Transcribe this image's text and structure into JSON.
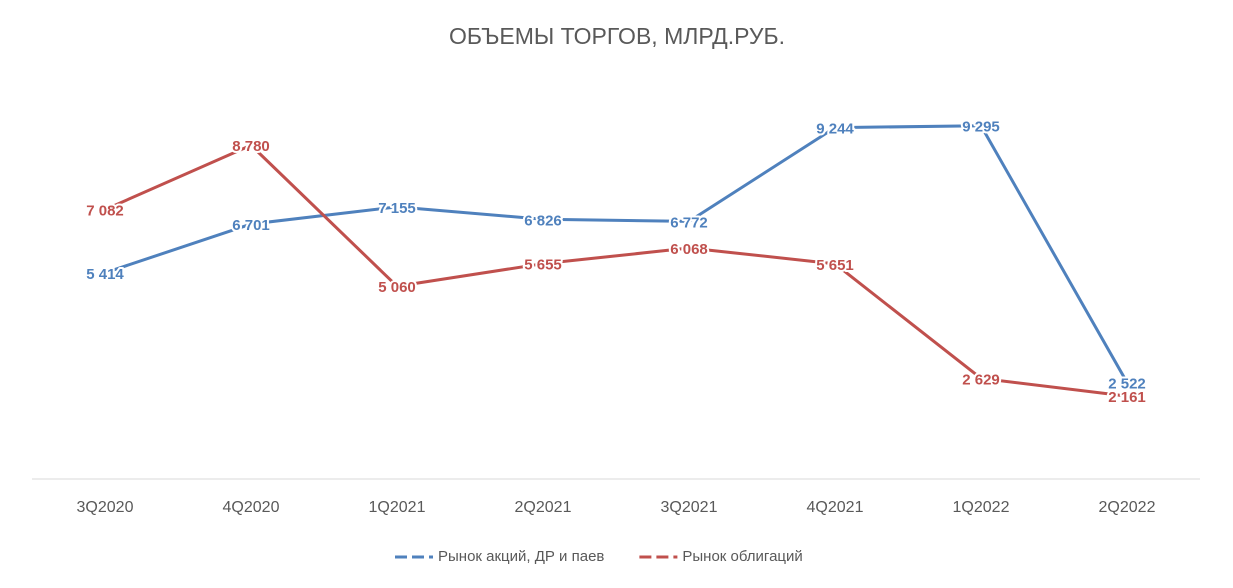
{
  "chart_data": {
    "type": "line",
    "title": "ОБЪЕМЫ ТОРГОВ, МЛРД.РУБ.",
    "categories": [
      "3Q2020",
      "4Q2020",
      "1Q2021",
      "2Q2021",
      "3Q2021",
      "4Q2021",
      "1Q2022",
      "2Q2022"
    ],
    "series": [
      {
        "name": "Рынок акций, ДР и паев",
        "color": "#4f81bd",
        "values": [
          5414,
          6701,
          7155,
          6826,
          6772,
          9244,
          9295,
          2522
        ],
        "value_labels": [
          "5 414",
          "6 701",
          "7 155",
          "6 826",
          "6 772",
          "9 244",
          "9 295",
          "2 522"
        ]
      },
      {
        "name": "Рынок облигаций",
        "color": "#c0504d",
        "values": [
          7082,
          8780,
          5060,
          5655,
          6068,
          5651,
          2629,
          2161
        ],
        "value_labels": [
          "7 082",
          "8 780",
          "5 060",
          "5 655",
          "6 068",
          "5 651",
          "2 629",
          "2 161"
        ]
      }
    ],
    "ylim": [
      0,
      10000
    ]
  }
}
